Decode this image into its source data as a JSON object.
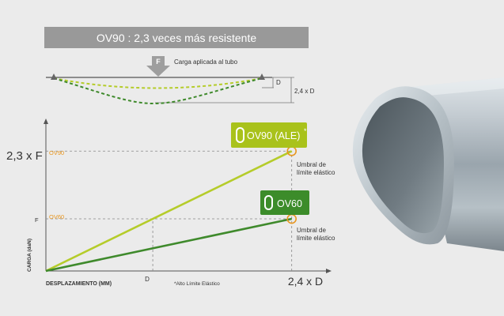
{
  "banner": {
    "title": "OV90 : 2,3 veces más resistente"
  },
  "deflection": {
    "force_label": "F",
    "caption": "Carga aplicada al tubo",
    "d_label": "D",
    "max_label": "2,4 x D"
  },
  "chart": {
    "y_axis_label": "CARGA (daN)",
    "x_axis_label": "DESPLAZAMIENTO (MM)",
    "footnote": "*Alto Límite Elástico",
    "y_big_label": "2,3 x F",
    "y_tick_ov90": "OV90",
    "y_tick_f": "F",
    "y_tick_ov60": "OV60",
    "x_tick_d": "D",
    "x_big_label": "2,4 x D",
    "umbral_ov90": [
      "Umbral de",
      "límite elástico"
    ],
    "umbral_ov60": [
      "Umbral de",
      "límite elástico"
    ]
  },
  "badges": {
    "ov90": {
      "label": "OV90 (ALE)",
      "asterisk": "*",
      "color": "#a9c21b"
    },
    "ov60": {
      "label": "OV60",
      "color": "#3c8c2a"
    }
  },
  "colors": {
    "banner": "#999999",
    "ov90_line": "#b5cc2a",
    "ov60_line": "#3f8a2c",
    "threshold": "#e8961e",
    "axis": "#555555"
  },
  "chart_data": {
    "type": "line",
    "series": [
      {
        "name": "OV90 (ALE)",
        "x": [
          0,
          2.4
        ],
        "y": [
          0,
          2.3
        ]
      },
      {
        "name": "OV60",
        "x": [
          0,
          2.4
        ],
        "y": [
          0,
          1.0
        ]
      }
    ],
    "xlim": [
      0,
      2.75
    ],
    "ylim": [
      0,
      2.85
    ]
  }
}
